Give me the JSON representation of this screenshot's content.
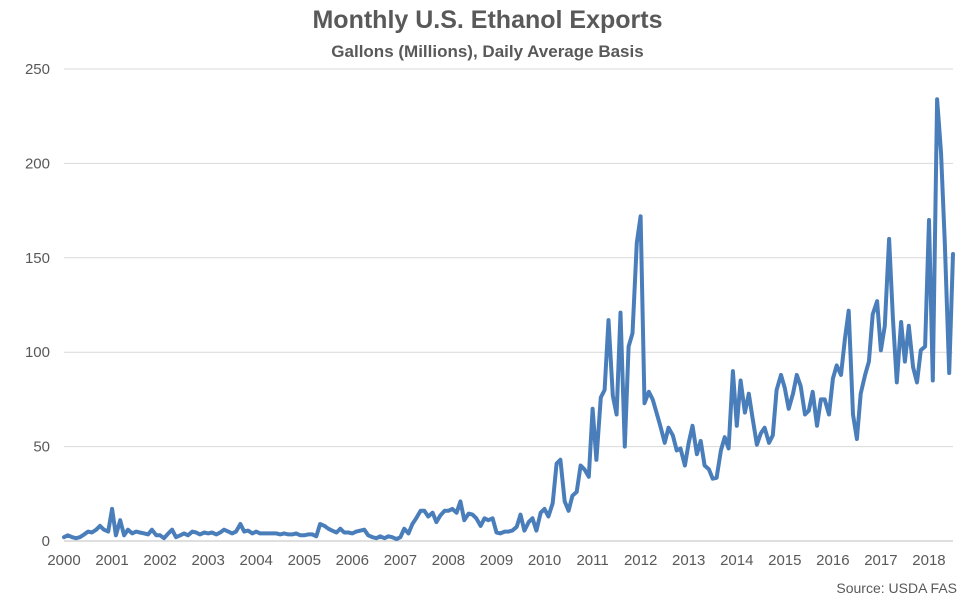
{
  "chart_data": {
    "type": "line",
    "title": "Monthly U.S. Ethanol Exports",
    "subtitle": "Gallons (Millions), Daily Average Basis",
    "source": "Source: USDA FAS",
    "xlabel": "",
    "ylabel": "",
    "ylim": [
      0,
      250
    ],
    "y_ticks": [
      "0",
      "50",
      "100",
      "150",
      "200",
      "250"
    ],
    "xlim": [
      2000,
      2018.5
    ],
    "x_ticks": [
      "2000",
      "2001",
      "2002",
      "2003",
      "2004",
      "2005",
      "2006",
      "2007",
      "2008",
      "2009",
      "2010",
      "2011",
      "2012",
      "2013",
      "2014",
      "2015",
      "2016",
      "2017",
      "2018"
    ],
    "grid": "horizontal",
    "legend": "none",
    "line_color": "#4a7ebb",
    "series": [
      {
        "x": [
          2000.0,
          2000.08,
          2000.17,
          2000.25,
          2000.33,
          2000.42,
          2000.5,
          2000.58,
          2000.67,
          2000.75,
          2000.83,
          2000.92,
          2001.0,
          2001.08,
          2001.17,
          2001.25,
          2001.33,
          2001.42,
          2001.5,
          2001.58,
          2001.67,
          2001.75,
          2001.83,
          2001.92,
          2002.0,
          2002.08,
          2002.17,
          2002.25,
          2002.33,
          2002.42,
          2002.5,
          2002.58,
          2002.67,
          2002.75,
          2002.83,
          2002.92,
          2003.0,
          2003.08,
          2003.17,
          2003.25,
          2003.33,
          2003.42,
          2003.5,
          2003.58,
          2003.67,
          2003.75,
          2003.83,
          2003.92,
          2004.0,
          2004.08,
          2004.17,
          2004.25,
          2004.33,
          2004.42,
          2004.5,
          2004.58,
          2004.67,
          2004.75,
          2004.83,
          2004.92,
          2005.0,
          2005.08,
          2005.17,
          2005.25,
          2005.33,
          2005.42,
          2005.5,
          2005.58,
          2005.67,
          2005.75,
          2005.83,
          2005.92,
          2006.0,
          2006.08,
          2006.17,
          2006.25,
          2006.33,
          2006.42,
          2006.5,
          2006.58,
          2006.67,
          2006.75,
          2006.83,
          2006.92,
          2007.0,
          2007.08,
          2007.17,
          2007.25,
          2007.33,
          2007.42,
          2007.5,
          2007.58,
          2007.67,
          2007.75,
          2007.83,
          2007.92,
          2008.0,
          2008.08,
          2008.17,
          2008.25,
          2008.33,
          2008.42,
          2008.5,
          2008.58,
          2008.67,
          2008.75,
          2008.83,
          2008.92,
          2009.0,
          2009.08,
          2009.17,
          2009.25,
          2009.33,
          2009.42,
          2009.5,
          2009.58,
          2009.67,
          2009.75,
          2009.83,
          2009.92,
          2010.0,
          2010.08,
          2010.17,
          2010.25,
          2010.33,
          2010.42,
          2010.5,
          2010.58,
          2010.67,
          2010.75,
          2010.83,
          2010.92,
          2011.0,
          2011.08,
          2011.17,
          2011.25,
          2011.33,
          2011.42,
          2011.5,
          2011.58,
          2011.67,
          2011.75,
          2011.83,
          2011.92,
          2012.0,
          2012.08,
          2012.17,
          2012.25,
          2012.33,
          2012.42,
          2012.5,
          2012.58,
          2012.67,
          2012.75,
          2012.83,
          2012.92,
          2013.0,
          2013.08,
          2013.17,
          2013.25,
          2013.33,
          2013.42,
          2013.5,
          2013.58,
          2013.67,
          2013.75,
          2013.83,
          2013.92,
          2014.0,
          2014.08,
          2014.17,
          2014.25,
          2014.33,
          2014.42,
          2014.5,
          2014.58,
          2014.67,
          2014.75,
          2014.83,
          2014.92,
          2015.0,
          2015.08,
          2015.17,
          2015.25,
          2015.33,
          2015.42,
          2015.5,
          2015.58,
          2015.67,
          2015.75,
          2015.83,
          2015.92,
          2016.0,
          2016.08,
          2016.17,
          2016.25,
          2016.33,
          2016.42,
          2016.5,
          2016.58,
          2016.67,
          2016.75,
          2016.83,
          2016.92,
          2017.0,
          2017.08,
          2017.17,
          2017.25,
          2017.33,
          2017.42,
          2017.5,
          2017.58,
          2017.67,
          2017.75,
          2017.83,
          2017.92,
          2018.0,
          2018.08,
          2018.17,
          2018.25,
          2018.33,
          2018.42,
          2018.5
        ],
        "y": [
          2,
          3,
          2,
          1.5,
          2,
          3.5,
          5,
          4.5,
          6,
          8,
          6,
          5,
          17,
          3,
          11,
          3,
          6,
          4,
          5,
          4.5,
          4,
          3.5,
          6,
          3,
          3,
          1.5,
          4,
          6,
          2,
          3,
          4,
          3,
          5,
          4.5,
          3.5,
          4.5,
          4,
          4.5,
          3.5,
          4.5,
          6,
          5,
          4,
          5,
          9,
          5,
          5.5,
          4,
          5,
          4,
          4,
          4,
          4,
          4,
          3.5,
          4,
          3.5,
          3.5,
          4,
          3,
          3,
          3.5,
          3.5,
          2.5,
          9,
          8,
          6.5,
          5.5,
          4.5,
          6.5,
          4.5,
          4.5,
          4,
          5,
          5.5,
          6,
          3,
          2,
          1.5,
          2.5,
          1.5,
          2.5,
          2,
          1,
          2,
          6.5,
          4,
          9,
          12,
          16,
          16,
          13,
          15,
          10,
          13.5,
          16,
          16,
          17,
          15,
          21,
          11,
          14.5,
          14,
          12,
          8,
          12,
          11,
          12,
          4.5,
          4,
          5,
          5,
          5.5,
          7.5,
          14,
          5.5,
          10,
          12,
          5.5,
          15,
          17,
          13,
          20,
          41,
          43,
          21,
          16,
          24,
          26,
          40,
          38,
          34,
          70,
          43,
          76,
          80,
          117,
          77,
          67,
          121,
          50,
          103,
          110,
          158,
          172,
          73,
          79,
          75,
          68,
          60,
          52,
          60,
          56,
          48,
          49,
          40,
          52,
          61,
          46,
          53,
          40,
          38,
          33,
          33.5,
          48,
          55,
          49,
          90,
          61,
          85,
          68,
          78,
          65,
          51,
          57,
          60,
          52,
          56,
          80,
          88,
          81,
          70,
          78,
          88,
          82,
          67,
          69,
          79,
          61,
          75,
          75,
          67,
          86,
          93,
          88,
          107,
          122,
          67,
          54,
          78,
          88,
          95,
          120,
          127,
          101,
          114,
          160,
          118,
          84,
          116,
          95,
          114,
          92,
          84,
          101,
          103,
          170,
          85,
          234,
          206,
          158,
          89,
          152
        ]
      }
    ]
  }
}
